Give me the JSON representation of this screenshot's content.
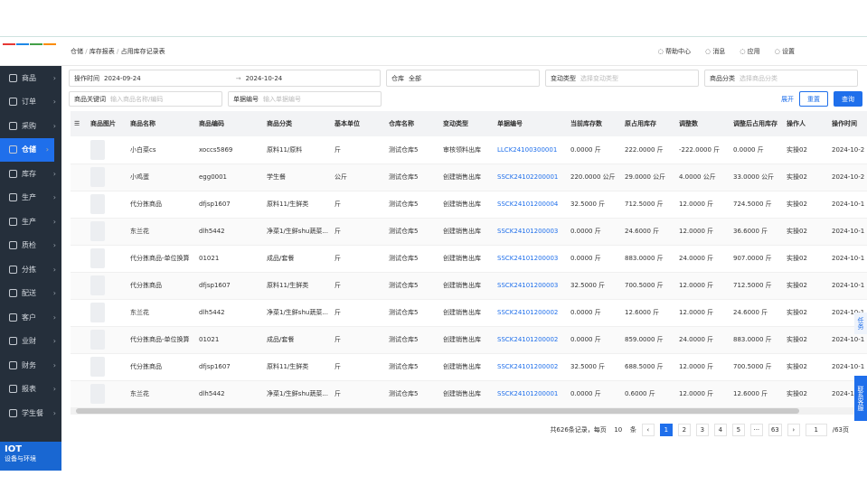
{
  "header": {
    "breadcrumb": [
      "仓储",
      "库存报表",
      "占用库存记录表"
    ],
    "actions": [
      "帮助中心",
      "消息",
      "应用",
      "设置"
    ]
  },
  "sidebar": {
    "items": [
      "商品",
      "订单",
      "采购",
      "仓储",
      "库存",
      "生产",
      "生产",
      "质检",
      "分拣",
      "配送",
      "客户",
      "业财",
      "财务",
      "报表",
      "学生餐"
    ],
    "active": 3,
    "footer": {
      "title": "IOT",
      "subtitle": "设备与环境"
    }
  },
  "filters": {
    "time_label": "操作时间",
    "start": "2024-09-24",
    "end": "2024-10-24",
    "warehouse_label": "仓库",
    "warehouse": "全部",
    "change_type_label": "变动类型",
    "change_type_placeholder": "选择变动类型",
    "category_label": "商品分类",
    "category_placeholder": "选择商品分类",
    "keyword_label": "商品关键词",
    "keyword_placeholder": "输入商品名称/编码",
    "doc_label": "单据编号",
    "doc_placeholder": "输入单据编号",
    "expand": "展开",
    "reset": "重置",
    "search": "查询"
  },
  "table": {
    "columns": [
      "商品图片",
      "商品名称",
      "商品编码",
      "商品分类",
      "基本单位",
      "仓库名称",
      "变动类型",
      "单据编号",
      "当前库存数",
      "原占用库存",
      "调整数",
      "调整后占用库存",
      "操作人",
      "操作时间"
    ],
    "rows": [
      [
        "小白菜cs",
        "xoccs5869",
        "原料11/原料",
        "斤",
        "测试仓库5",
        "审核领料出库",
        "LLCK24100300001",
        "0.0000 斤",
        "222.0000 斤",
        "-222.0000 斤",
        "0.0000 斤",
        "实操02",
        "2024-10-2"
      ],
      [
        "小鸡蛋",
        "egg0001",
        "学生餐",
        "公斤",
        "测试仓库5",
        "创建销售出库",
        "SSCK24102200001",
        "220.0000 公斤",
        "29.0000 公斤",
        "4.0000 公斤",
        "33.0000 公斤",
        "实操02",
        "2024-10-2"
      ],
      [
        "代分拣商品",
        "dfjsp1607",
        "原料11/生鲜类",
        "斤",
        "测试仓库5",
        "创建销售出库",
        "SSCK24101200004",
        "32.5000 斤",
        "712.5000 斤",
        "12.0000 斤",
        "724.5000 斤",
        "实操02",
        "2024-10-1"
      ],
      [
        "东兰花",
        "dlh5442",
        "净菜1/生鲜shu蔬菜...",
        "斤",
        "测试仓库5",
        "创建销售出库",
        "SSCK24101200003",
        "0.0000 斤",
        "24.6000 斤",
        "12.0000 斤",
        "36.6000 斤",
        "实操02",
        "2024-10-1"
      ],
      [
        "代分拣商品-单位换算",
        "01021",
        "成品/套餐",
        "斤",
        "测试仓库5",
        "创建销售出库",
        "SSCK24101200003",
        "0.0000 斤",
        "883.0000 斤",
        "24.0000 斤",
        "907.0000 斤",
        "实操02",
        "2024-10-1"
      ],
      [
        "代分拣商品",
        "dfjsp1607",
        "原料11/生鲜类",
        "斤",
        "测试仓库5",
        "创建销售出库",
        "SSCK24101200003",
        "32.5000 斤",
        "700.5000 斤",
        "12.0000 斤",
        "712.5000 斤",
        "实操02",
        "2024-10-1"
      ],
      [
        "东兰花",
        "dlh5442",
        "净菜1/生鲜shu蔬菜...",
        "斤",
        "测试仓库5",
        "创建销售出库",
        "SSCK24101200002",
        "0.0000 斤",
        "12.6000 斤",
        "12.0000 斤",
        "24.6000 斤",
        "实操02",
        "2024-10-1"
      ],
      [
        "代分拣商品-单位换算",
        "01021",
        "成品/套餐",
        "斤",
        "测试仓库5",
        "创建销售出库",
        "SSCK24101200002",
        "0.0000 斤",
        "859.0000 斤",
        "24.0000 斤",
        "883.0000 斤",
        "实操02",
        "2024-10-1"
      ],
      [
        "代分拣商品",
        "dfjsp1607",
        "原料11/生鲜类",
        "斤",
        "测试仓库5",
        "创建销售出库",
        "SSCK24101200002",
        "32.5000 斤",
        "688.5000 斤",
        "12.0000 斤",
        "700.5000 斤",
        "实操02",
        "2024-10-1"
      ],
      [
        "东兰花",
        "dlh5442",
        "净菜1/生鲜shu蔬菜...",
        "斤",
        "测试仓库5",
        "创建销售出库",
        "SSCK24101200001",
        "0.0000 斤",
        "0.6000 斤",
        "12.0000 斤",
        "12.6000 斤",
        "实操02",
        "2024-10-1"
      ]
    ]
  },
  "pagination": {
    "total": "共626条记录，每页",
    "page_size": "10",
    "unit": "条",
    "pages": [
      "1",
      "2",
      "3",
      "4",
      "5",
      "···",
      "63"
    ],
    "jump": "1",
    "page_count": "/63页"
  },
  "float": {
    "task": "任务",
    "service": "联系客服"
  }
}
